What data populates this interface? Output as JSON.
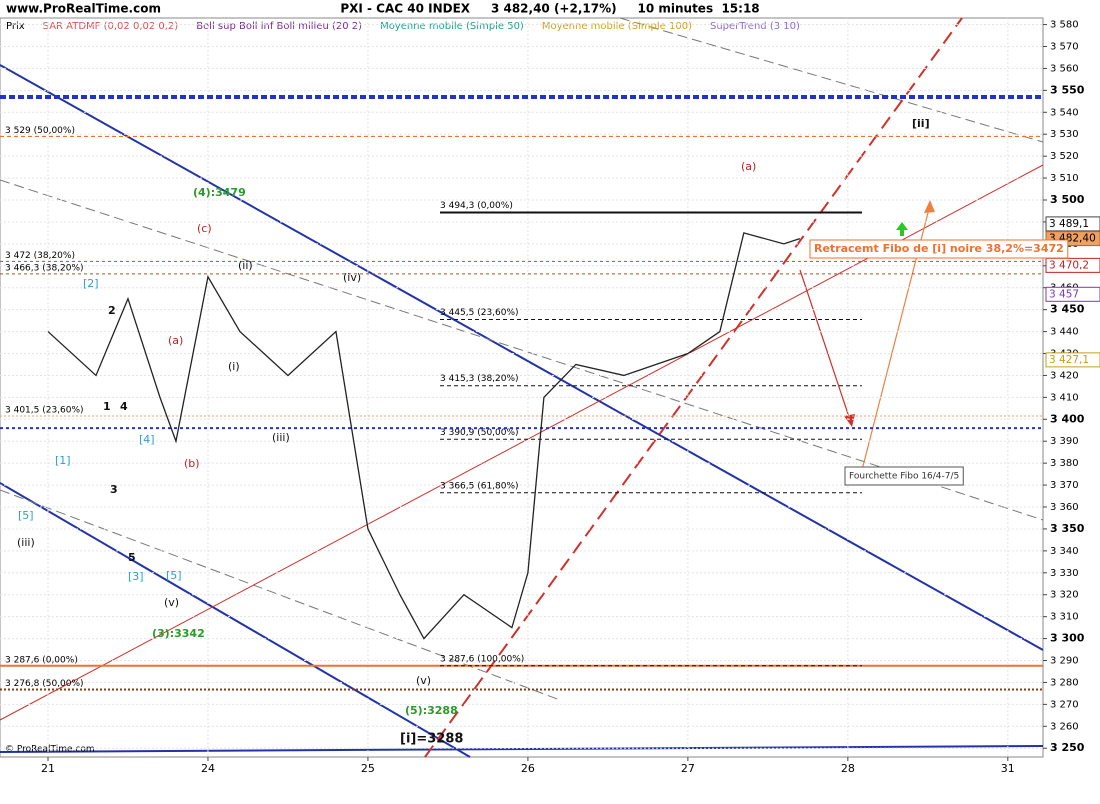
{
  "chart_data": {
    "type": "line",
    "site": "www.ProRealTime.com",
    "title": "PXI - CAC 40 INDEX     3 482,40 (+2,17%)     10 minutes  15:18",
    "legend": [
      {
        "name": "Prix",
        "color": "#000000"
      },
      {
        "name": "SAR ATDMF (0,02 0,02 0,2)",
        "color": "#d9534f"
      },
      {
        "name": "Boll sup Boll inf Boll milieu (20 2)",
        "color": "#7a2a9a"
      },
      {
        "name": "Moyenne mobile (Simple 50)",
        "color": "#1aa58a"
      },
      {
        "name": "Moyenne mobile (Simple 100)",
        "color": "#d4a017"
      },
      {
        "name": "SuperTrend (3 10)",
        "color": "#8a6ad8"
      }
    ],
    "series": [
      {
        "name": "Prix",
        "color": "#222222",
        "x": [
          0,
          0.3,
          0.5,
          0.7,
          0.8,
          1.0,
          1.2,
          1.5,
          1.8,
          2.0,
          2.2,
          2.35,
          2.6,
          2.9,
          3.0,
          3.1,
          3.3,
          3.6,
          3.8,
          4.0,
          4.2,
          4.35,
          4.6,
          4.7
        ],
        "values": [
          3440,
          3420,
          3455,
          3410,
          3390,
          3465,
          3440,
          3420,
          3440,
          3350,
          3320,
          3300,
          3320,
          3305,
          3330,
          3410,
          3425,
          3420,
          3425,
          3430,
          3440,
          3485,
          3480,
          3482.4
        ]
      }
    ],
    "xlim": [
      -0.3,
      6.22
    ],
    "xticks": [
      {
        "value": 0,
        "label": "21"
      },
      {
        "value": 1,
        "label": "24"
      },
      {
        "value": 2,
        "label": "25"
      },
      {
        "value": 3,
        "label": "26"
      },
      {
        "value": 4,
        "label": "27"
      },
      {
        "value": 5,
        "label": "28"
      },
      {
        "value": 6,
        "label": "31"
      }
    ],
    "ylim": [
      3246,
      3583
    ],
    "yticks": [
      {
        "value": 3250,
        "label": "3 250"
      },
      {
        "value": 3260,
        "label": "3 260"
      },
      {
        "value": 3270,
        "label": "3 270"
      },
      {
        "value": 3280,
        "label": "3 280"
      },
      {
        "value": 3290,
        "label": "3 290"
      },
      {
        "value": 3300,
        "label": "3 300"
      },
      {
        "value": 3310,
        "label": "3 310"
      },
      {
        "value": 3320,
        "label": "3 320"
      },
      {
        "value": 3330,
        "label": "3 330"
      },
      {
        "value": 3340,
        "label": "3 340"
      },
      {
        "value": 3350,
        "label": "3 350"
      },
      {
        "value": 3360,
        "label": "3 360"
      },
      {
        "value": 3370,
        "label": "3 370"
      },
      {
        "value": 3380,
        "label": "3 380"
      },
      {
        "value": 3390,
        "label": "3 390"
      },
      {
        "value": 3400,
        "label": "3 400"
      },
      {
        "value": 3410,
        "label": "3 410"
      },
      {
        "value": 3420,
        "label": "3 420"
      },
      {
        "value": 3430,
        "label": "3 430"
      },
      {
        "value": 3440,
        "label": "3 440"
      },
      {
        "value": 3450,
        "label": "3 450"
      },
      {
        "value": 3460,
        "label": "3 460"
      },
      {
        "value": 3470,
        "label": "3 470"
      },
      {
        "value": 3480,
        "label": "3 480"
      },
      {
        "value": 3490,
        "label": "3 490"
      },
      {
        "value": 3500,
        "label": "3 500"
      },
      {
        "value": 3510,
        "label": "3 510"
      },
      {
        "value": 3520,
        "label": "3 520"
      },
      {
        "value": 3530,
        "label": "3 530"
      },
      {
        "value": 3540,
        "label": "3 540"
      },
      {
        "value": 3550,
        "label": "3 550"
      },
      {
        "value": 3560,
        "label": "3 560"
      },
      {
        "value": 3570,
        "label": "3 570"
      },
      {
        "value": 3580,
        "label": "3 580"
      }
    ],
    "grid": true,
    "levels_left": [
      {
        "value": 3529,
        "label": "3 529 (50,00%)"
      },
      {
        "value": 3472,
        "label": "3 472 (38,20%)"
      },
      {
        "value": 3466.3,
        "label": "3 466,3 (38,20%)"
      },
      {
        "value": 3401.5,
        "label": "3 401,5 (23,60%)"
      },
      {
        "value": 3287.6,
        "label": "3 287,6 (0,00%)"
      },
      {
        "value": 3276.8,
        "label": "3 276,8 (50,00%)"
      }
    ],
    "levels_right": [
      {
        "value": 3494.3,
        "label": "3 494,3 (0,00%)"
      },
      {
        "value": 3445.5,
        "label": "3 445,5 (23,60%)"
      },
      {
        "value": 3415.3,
        "label": "3 415,3 (38,20%)"
      },
      {
        "value": 3390.9,
        "label": "3 390,9 (50,00%)"
      },
      {
        "value": 3366.5,
        "label": "3 366,5 (61,80%)"
      },
      {
        "value": 3287.6,
        "label": "3 287,6 (100,00%)"
      }
    ],
    "blue_levels": [
      3547,
      3396
    ],
    "price_tags": [
      {
        "value": 3489.1,
        "label": "3 489,1"
      },
      {
        "value": 3482.4,
        "label": "3 482,40"
      },
      {
        "value": 3470.2,
        "label": "3 470,2"
      },
      {
        "value": 3457,
        "label": "3 457"
      },
      {
        "value": 3427.1,
        "label": "3 427,1"
      }
    ],
    "annotations": [
      "(4):3479",
      "(c)",
      "(ii)",
      "(iv)",
      "(a)",
      "(i)",
      "(iii)",
      "(b)",
      "4",
      "1",
      "2",
      "3",
      "5",
      "[2]",
      "[4]",
      "[1]",
      "[5]",
      "[3]",
      "[5]",
      "(iii)",
      "(v)",
      "(3):3342",
      "(v)",
      "(5):3288",
      "[i]=3288",
      "(a)",
      "[ii]"
    ],
    "box_notes": [
      "Retracemt Fibo de [i] noire 38,2%=3472",
      "Fourchette Fibo 16/4-7/5"
    ],
    "copyright": "© ProRealTime.com"
  }
}
